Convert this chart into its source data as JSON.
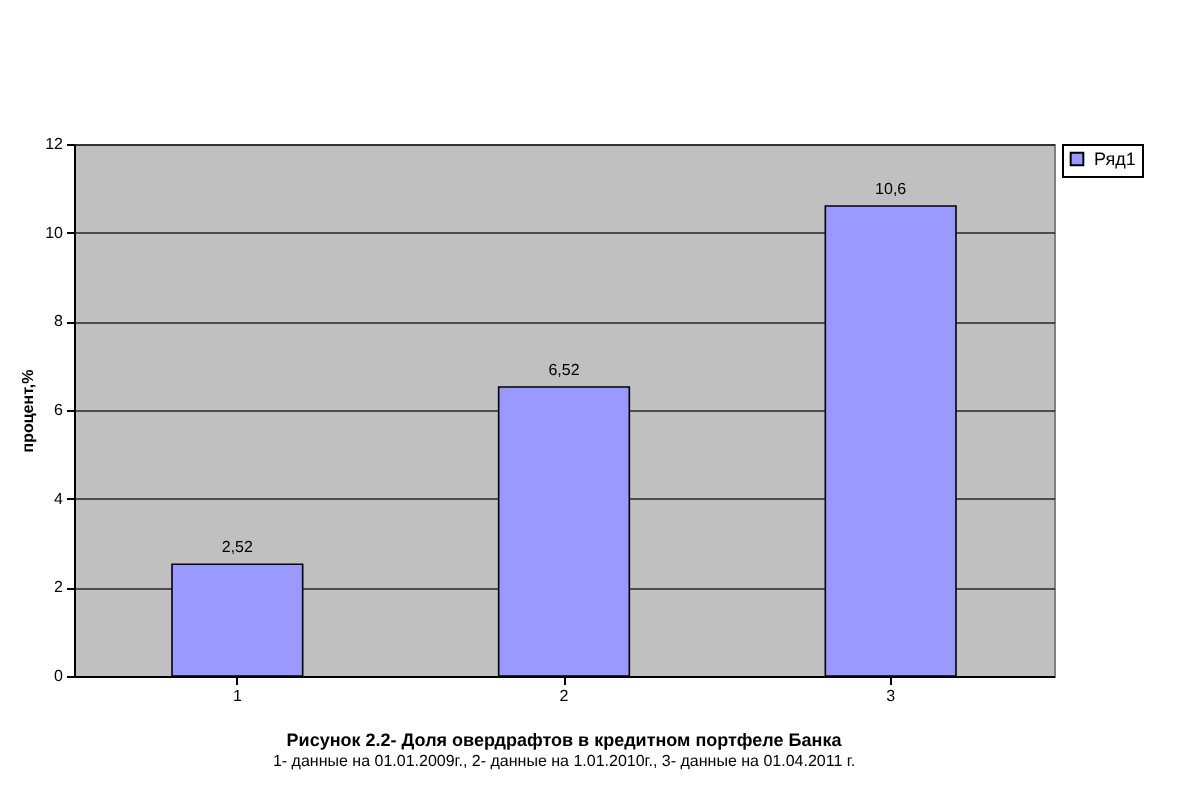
{
  "chart_data": {
    "type": "bar",
    "title": "Рисунок 2.2- Доля овердрафтов в кредитном портфеле Банка",
    "ylabel": "процент,%",
    "annotations": [
      "1- данные на 01.01.2009г., 2- данные на 1.01.2010г., 3- данные на 01.04.2011 г."
    ],
    "categories": [
      "1",
      "2",
      "3"
    ],
    "series": [
      {
        "name": "Ряд1",
        "color": "#9999ff",
        "values": [
          2.52,
          6.52,
          10.6
        ],
        "value_labels": [
          "2,52",
          "6,52",
          "10,6"
        ]
      }
    ],
    "ylim": [
      0,
      12
    ],
    "yticks": [
      0,
      2,
      4,
      6,
      8,
      10,
      12
    ],
    "grid": "y",
    "legend": "right"
  }
}
